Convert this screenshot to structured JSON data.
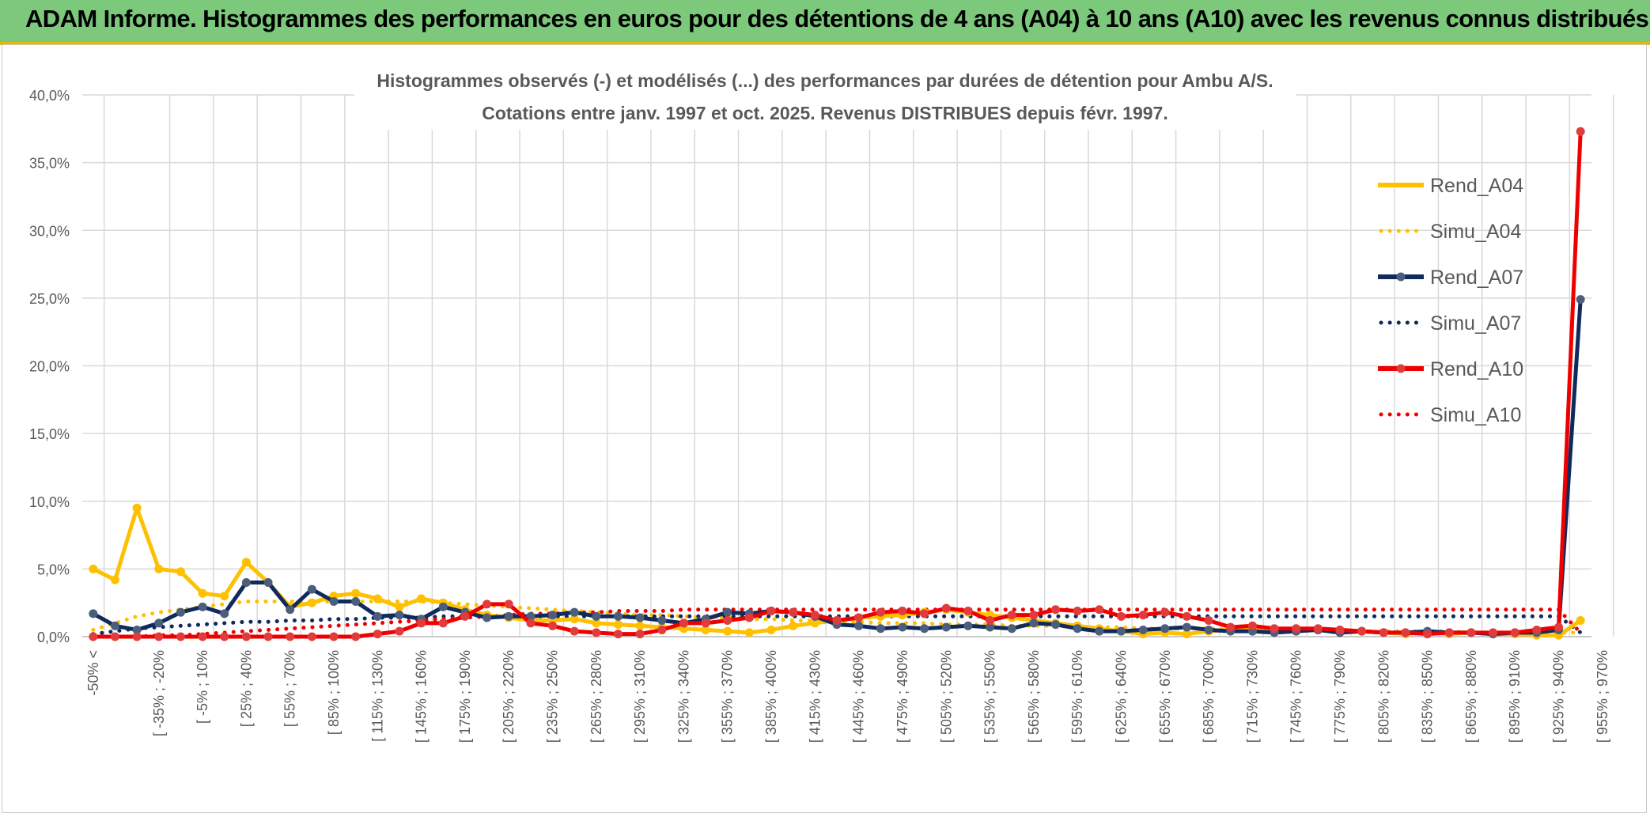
{
  "banner": {
    "title": "ADAM Informe. Histogrammes des performances en euros pour des détentions de 4 ans (A04) à 10 ans (A10) avec les revenus connus distribués"
  },
  "colors": {
    "banner_bg": "#7cc97c",
    "a04": "#FFC000",
    "a07": "#0F2A5C",
    "a10": "#EE0000",
    "a07_marker": "#4C5E7E",
    "a10_marker": "#E23B3B",
    "a04_marker": "#FFC000"
  },
  "chart_data": {
    "type": "line",
    "title": "Histogrammes observés (-) et modélisés (...) des performances par durées de détention pour Ambu A/S.",
    "subtitle": "Cotations entre janv. 1997 et oct. 2025. Revenus DISTRIBUES depuis févr. 1997.",
    "xlabel": "",
    "ylabel": "",
    "ylim": [
      0,
      40
    ],
    "yticks": [
      "0,0%",
      "5,0%",
      "10,0%",
      "15,0%",
      "20,0%",
      "25,0%",
      "30,0%",
      "35,0%",
      "40,0%"
    ],
    "grid": true,
    "legend_position": "right",
    "x_tick_labels": [
      "-50% <",
      "[ -35% ; -20%",
      "[ -5% ; 10%",
      "[ 25% ; 40%",
      "[ 55% ; 70%",
      "[ 85% ; 100%",
      "[ 115% ; 130%",
      "[ 145% ; 160%",
      "[ 175% ; 190%",
      "[ 205% ; 220%",
      "[ 235% ; 250%",
      "[ 265% ; 280%",
      "[ 295% ; 310%",
      "[ 325% ; 340%",
      "[ 355% ; 370%",
      "[ 385% ; 400%",
      "[ 415% ; 430%",
      "[ 445% ; 460%",
      "[ 475% ; 490%",
      "[ 505% ; 520%",
      "[ 535% ; 550%",
      "[ 565% ; 580%",
      "[ 595% ; 610%",
      "[ 625% ; 640%",
      "[ 655% ; 670%",
      "[ 685% ; 700%",
      "[ 715% ; 730%",
      "[ 745% ; 760%",
      "[ 775% ; 790%",
      "[ 805% ; 820%",
      "[ 835% ; 850%",
      "[ 865% ; 880%",
      "[ 895% ; 910%",
      "[ 925% ; 940%",
      "[ 955% ; 970%"
    ],
    "n_points": 69,
    "series": [
      {
        "name": "Rend_A04",
        "style": "solid",
        "color": "#FFC000",
        "values": [
          5.0,
          4.2,
          9.5,
          5.0,
          4.8,
          3.2,
          3.0,
          5.5,
          4.0,
          2.2,
          2.5,
          3.0,
          3.2,
          2.8,
          2.2,
          2.8,
          2.5,
          2.0,
          1.6,
          1.4,
          1.2,
          1.2,
          1.3,
          1.0,
          0.9,
          0.8,
          0.7,
          0.6,
          0.5,
          0.4,
          0.3,
          0.5,
          0.8,
          1.0,
          1.2,
          1.4,
          1.5,
          1.6,
          1.8,
          2.0,
          1.8,
          1.6,
          1.4,
          1.2,
          1.0,
          0.8,
          0.6,
          0.4,
          0.2,
          0.3,
          0.2,
          0.4,
          0.5,
          0.6,
          0.5,
          0.4,
          0.5,
          0.3,
          0.4,
          0.3,
          0.2,
          0.3,
          0.2,
          0.3,
          0.2,
          0.2,
          0.1,
          0.1,
          1.2
        ]
      },
      {
        "name": "Simu_A04",
        "style": "dotted",
        "color": "#FFC000",
        "values": [
          0.5,
          1.0,
          1.5,
          1.8,
          2.0,
          2.2,
          2.4,
          2.6,
          2.6,
          2.6,
          2.6,
          2.6,
          2.6,
          2.6,
          2.6,
          2.6,
          2.5,
          2.4,
          2.3,
          2.2,
          2.1,
          2.0,
          1.9,
          1.8,
          1.7,
          1.6,
          1.6,
          1.5,
          1.4,
          1.4,
          1.3,
          1.3,
          1.2,
          1.2,
          1.1,
          1.1,
          1.0,
          1.0,
          1.0,
          0.9,
          0.9,
          0.9,
          0.8,
          0.8,
          0.8,
          0.7,
          0.7,
          0.7,
          0.6,
          0.6,
          0.6,
          0.6,
          0.5,
          0.5,
          0.5,
          0.5,
          0.5,
          0.4,
          0.4,
          0.4,
          0.4,
          0.4,
          0.4,
          0.3,
          0.3,
          0.3,
          0.3,
          0.3,
          0.3
        ]
      },
      {
        "name": "Rend_A07",
        "style": "solid",
        "color": "#0F2A5C",
        "values": [
          1.7,
          0.8,
          0.5,
          1.0,
          1.8,
          2.2,
          1.7,
          4.0,
          4.0,
          2.0,
          3.5,
          2.6,
          2.6,
          1.5,
          1.6,
          1.3,
          2.2,
          1.8,
          1.4,
          1.5,
          1.5,
          1.6,
          1.8,
          1.5,
          1.5,
          1.4,
          1.2,
          1.0,
          1.3,
          1.8,
          1.7,
          1.9,
          1.8,
          1.5,
          0.9,
          0.8,
          0.6,
          0.7,
          0.6,
          0.7,
          0.8,
          0.7,
          0.6,
          1.0,
          0.9,
          0.6,
          0.4,
          0.4,
          0.5,
          0.6,
          0.7,
          0.5,
          0.4,
          0.4,
          0.3,
          0.4,
          0.5,
          0.3,
          0.4,
          0.3,
          0.3,
          0.4,
          0.3,
          0.3,
          0.2,
          0.3,
          0.3,
          0.5,
          24.9
        ]
      },
      {
        "name": "Simu_A07",
        "style": "dotted",
        "color": "#0F2A5C",
        "values": [
          0.2,
          0.4,
          0.6,
          0.7,
          0.8,
          0.9,
          1.0,
          1.1,
          1.1,
          1.2,
          1.2,
          1.3,
          1.3,
          1.4,
          1.4,
          1.4,
          1.5,
          1.5,
          1.5,
          1.5,
          1.5,
          1.5,
          1.5,
          1.5,
          1.5,
          1.5,
          1.5,
          1.5,
          1.5,
          1.5,
          1.5,
          1.5,
          1.5,
          1.5,
          1.5,
          1.5,
          1.5,
          1.5,
          1.5,
          1.5,
          1.5,
          1.5,
          1.5,
          1.5,
          1.5,
          1.5,
          1.5,
          1.5,
          1.5,
          1.5,
          1.5,
          1.5,
          1.5,
          1.5,
          1.5,
          1.5,
          1.5,
          1.5,
          1.5,
          1.5,
          1.5,
          1.5,
          1.5,
          1.5,
          1.5,
          1.5,
          1.5,
          1.5,
          0.3
        ]
      },
      {
        "name": "Rend_A10",
        "style": "solid",
        "color": "#EE0000",
        "values": [
          0.0,
          0.0,
          0.0,
          0.0,
          0.0,
          0.0,
          0.0,
          0.0,
          0.0,
          0.0,
          0.0,
          0.0,
          0.0,
          0.2,
          0.4,
          1.0,
          1.0,
          1.5,
          2.4,
          2.4,
          1.0,
          0.8,
          0.4,
          0.3,
          0.2,
          0.2,
          0.5,
          1.0,
          1.0,
          1.2,
          1.4,
          1.9,
          1.8,
          1.6,
          1.2,
          1.4,
          1.8,
          1.9,
          1.7,
          2.1,
          1.9,
          1.2,
          1.6,
          1.6,
          2.0,
          1.9,
          2.0,
          1.5,
          1.6,
          1.8,
          1.5,
          1.2,
          0.7,
          0.8,
          0.6,
          0.6,
          0.6,
          0.5,
          0.4,
          0.3,
          0.3,
          0.2,
          0.3,
          0.3,
          0.3,
          0.3,
          0.5,
          0.7,
          37.3
        ]
      },
      {
        "name": "Simu_A10",
        "style": "dotted",
        "color": "#EE0000",
        "values": [
          0.0,
          0.0,
          0.0,
          0.1,
          0.1,
          0.2,
          0.3,
          0.4,
          0.5,
          0.6,
          0.7,
          0.8,
          0.9,
          1.0,
          1.1,
          1.2,
          1.3,
          1.4,
          1.5,
          1.6,
          1.7,
          1.7,
          1.8,
          1.8,
          1.9,
          1.9,
          1.9,
          2.0,
          2.0,
          2.0,
          2.0,
          2.0,
          2.0,
          2.0,
          2.0,
          2.0,
          2.0,
          2.0,
          2.0,
          2.0,
          2.0,
          2.0,
          2.0,
          2.0,
          2.0,
          2.0,
          2.0,
          2.0,
          2.0,
          2.0,
          2.0,
          2.0,
          2.0,
          2.0,
          2.0,
          2.0,
          2.0,
          2.0,
          2.0,
          2.0,
          2.0,
          2.0,
          2.0,
          2.0,
          2.0,
          2.0,
          2.0,
          2.0,
          0.3
        ]
      }
    ]
  }
}
